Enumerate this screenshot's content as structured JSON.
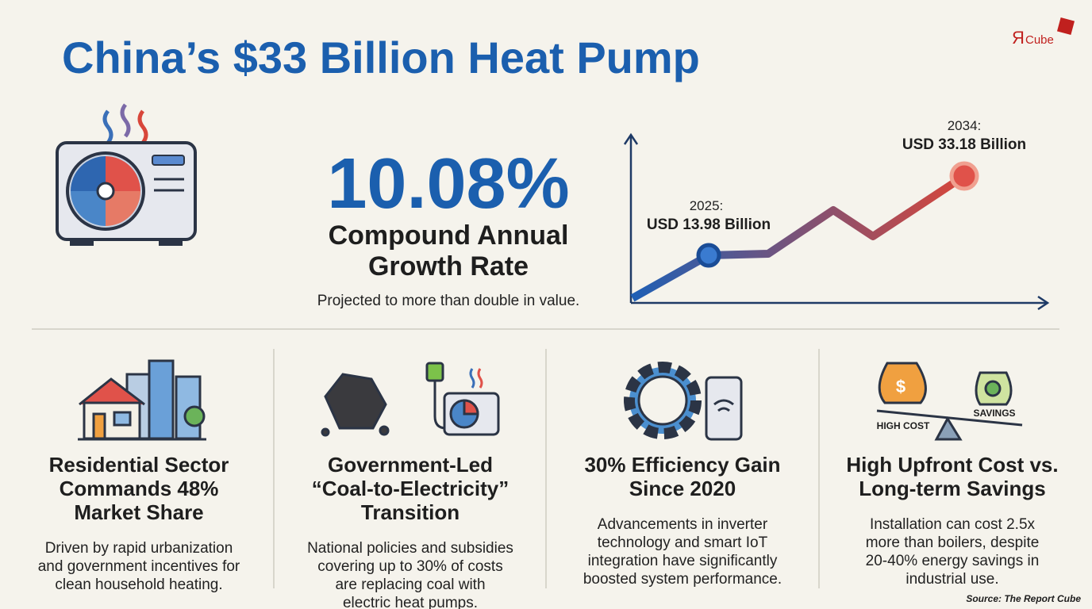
{
  "header": {
    "title": "China’s $33 Billion Heat Pump",
    "logo": {
      "mark": "Я",
      "text": "Cube"
    }
  },
  "hero": {
    "rate": "10.08%",
    "rate_label": [
      "Compound Annual",
      "Growth Rate"
    ],
    "note": "Projected to more than double in value."
  },
  "trend": {
    "start": {
      "year": "2025:",
      "value": "USD 13.98 Billion"
    },
    "end": {
      "year": "2034:",
      "value": "USD 33.18 Billion"
    }
  },
  "columns": [
    {
      "heading": [
        "Residential Sector",
        "Commands 48%",
        "Market Share"
      ],
      "body": [
        "Driven by rapid urbanization",
        "and government incentives for",
        "clean household heating."
      ]
    },
    {
      "heading": [
        "Government-Led",
        "“Coal-to-Electricity”",
        "Transition"
      ],
      "body": [
        "National policies and subsidies",
        "covering up to 30% of costs",
        "are replacing coal with",
        "electric heat pumps."
      ]
    },
    {
      "heading": [
        "30% Efficiency Gain",
        "Since 2020"
      ],
      "body": [
        "Advancements in inverter",
        "technology and smart IoT",
        "integration have significantly",
        "boosted system performance."
      ]
    },
    {
      "heading": [
        "High Upfront Cost vs.",
        "Long-term Savings"
      ],
      "body": [
        "Installation can cost 2.5x",
        "more than boilers, despite",
        "20-40% energy savings in",
        "industrial use."
      ],
      "icon_labels": [
        "HIGH COST",
        "SAVINGS"
      ]
    }
  ],
  "footer": {
    "source": "Source: The Report Cube"
  }
}
